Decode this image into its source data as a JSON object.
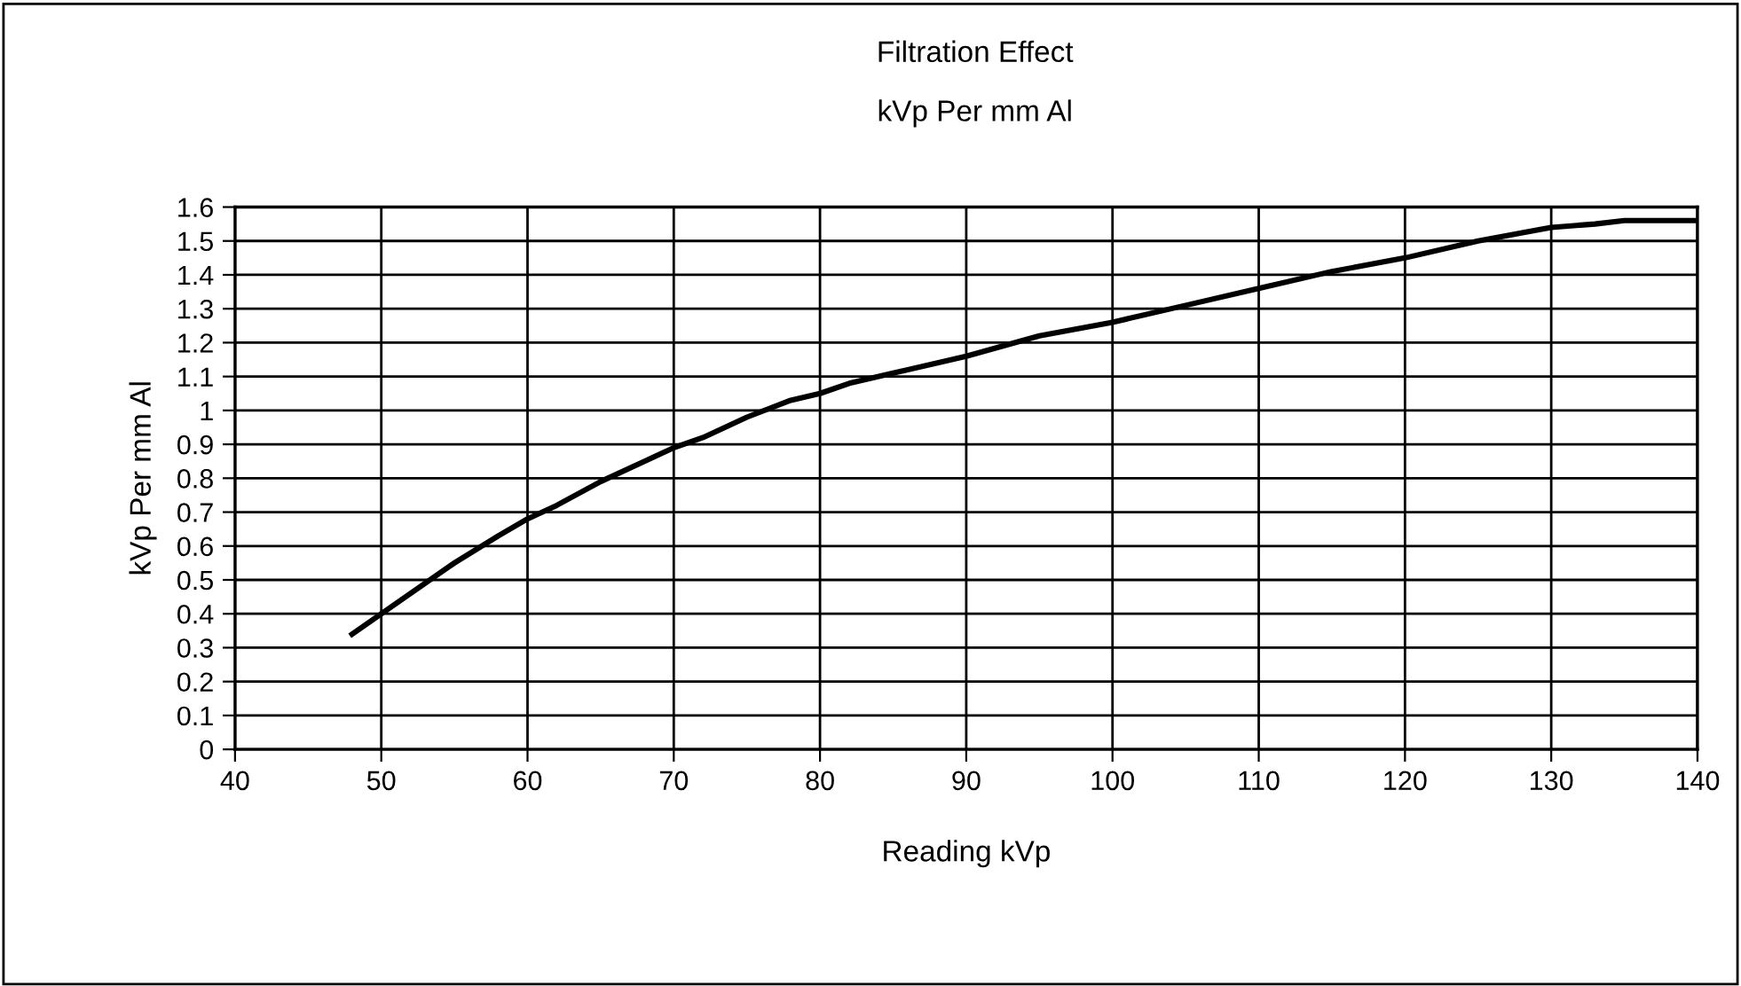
{
  "chart_data": {
    "type": "line",
    "title": "Filtration Effect",
    "subtitle": "kVp Per mm Al",
    "xlabel": "Reading kVp",
    "ylabel": "kVp Per mm Al",
    "x": [
      48,
      50,
      52,
      55,
      58,
      60,
      62,
      65,
      68,
      70,
      72,
      75,
      78,
      80,
      82,
      85,
      90,
      95,
      100,
      105,
      110,
      115,
      120,
      125,
      130,
      133,
      135,
      140
    ],
    "series": [
      {
        "color": "#000000",
        "values": [
          0.34,
          0.4,
          0.46,
          0.55,
          0.63,
          0.68,
          0.72,
          0.79,
          0.85,
          0.89,
          0.92,
          0.98,
          1.03,
          1.05,
          1.08,
          1.11,
          1.16,
          1.22,
          1.26,
          1.31,
          1.36,
          1.41,
          1.45,
          1.5,
          1.54,
          1.55,
          1.56,
          1.56
        ]
      }
    ],
    "xlim": [
      40,
      140
    ],
    "xticks": [
      40,
      50,
      60,
      70,
      80,
      90,
      100,
      110,
      120,
      130,
      140
    ],
    "ylim": [
      0,
      1.6
    ],
    "yticks": [
      0,
      0.1,
      0.2,
      0.3,
      0.4,
      0.5,
      0.6,
      0.7,
      0.8,
      0.9,
      1,
      1.1,
      1.2,
      1.3,
      1.4,
      1.5,
      1.6
    ],
    "grid": true,
    "marker": "none",
    "line_style": "solid",
    "legend": false
  }
}
